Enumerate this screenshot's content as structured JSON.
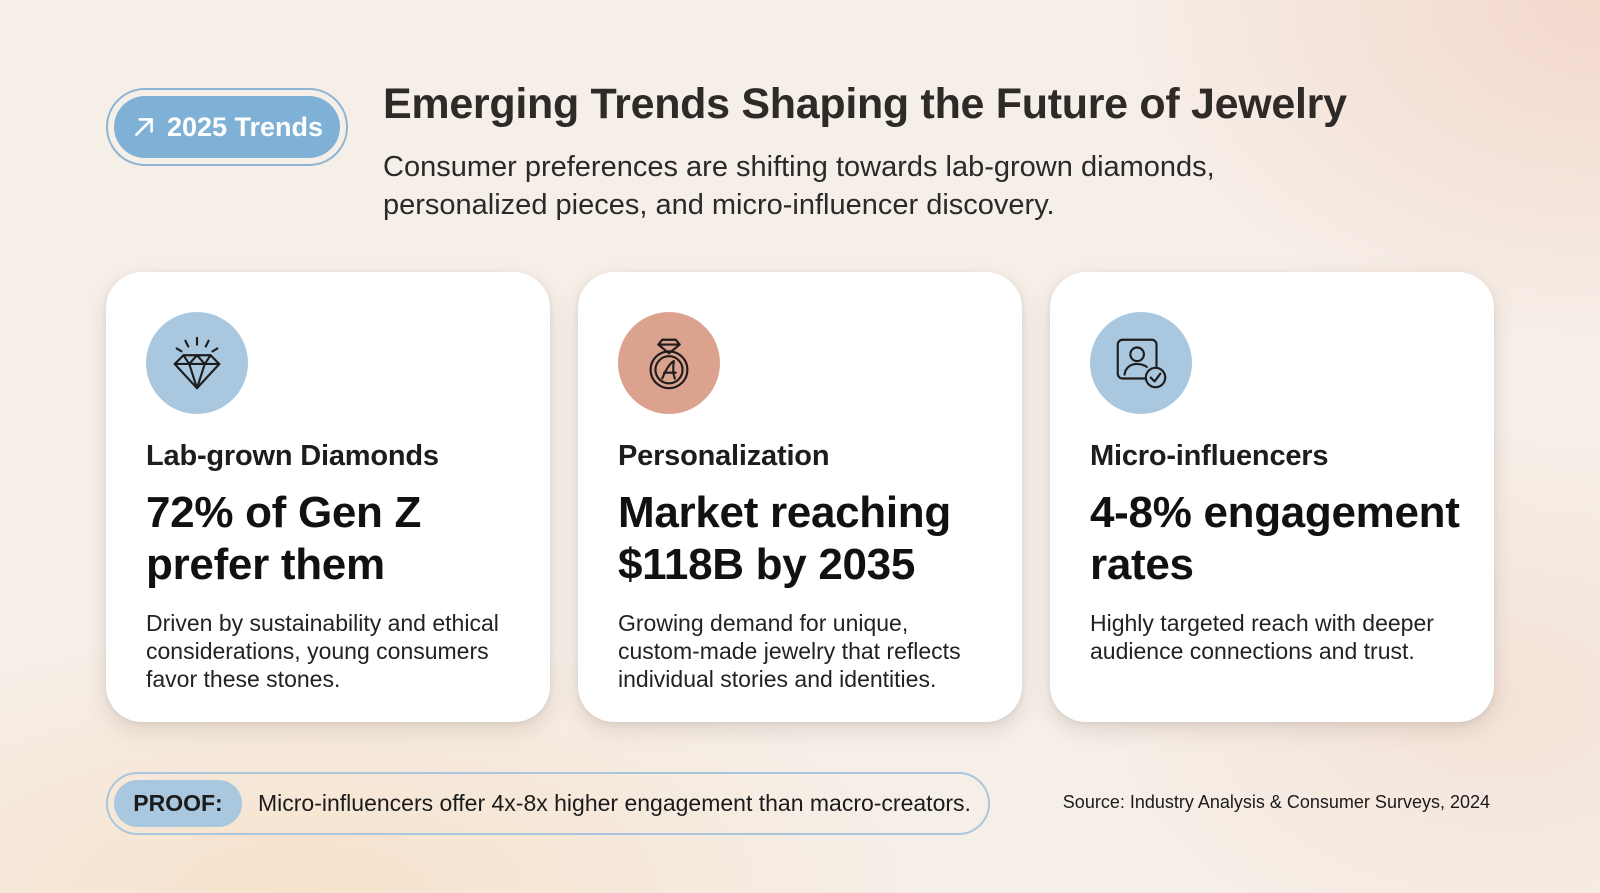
{
  "header": {
    "badge_label": "2025 Trends",
    "badge_icon": "trend-arrow-icon",
    "title": "Emerging Trends Shaping the Future of Jewelry",
    "subtitle": "Consumer preferences are shifting towards lab-grown diamonds, personalized pieces, and micro-influencer discovery."
  },
  "cards": [
    {
      "icon": "diamond-icon",
      "icon_bg": "#a9c8e0",
      "label": "Lab-grown Diamonds",
      "stat": "72% of Gen Z prefer them",
      "description": "Driven by sustainability and ethical considerations, young consumers favor these stones."
    },
    {
      "icon": "monogram-ring-icon",
      "icon_bg": "#dba28e",
      "label": "Personalization",
      "stat": "Market reaching $118B by 2035",
      "description": "Growing demand for unique, custom-made jewelry that reflects individual stories and identities."
    },
    {
      "icon": "verified-profile-icon",
      "icon_bg": "#a9c8e0",
      "label": "Micro-influencers",
      "stat": "4-8% engagement rates",
      "description": "Highly targeted reach with deeper audience connections and trust."
    }
  ],
  "proof": {
    "label": "PROOF:",
    "text": "Micro-influencers offer 4x-8x higher engagement than macro-creators."
  },
  "source": "Source: Industry Analysis & Consumer Surveys, 2024",
  "colors": {
    "accent_blue": "#7fb0d6",
    "soft_blue": "#a9c8e0",
    "rose": "#dba28e",
    "title_text": "#2e2a27"
  }
}
